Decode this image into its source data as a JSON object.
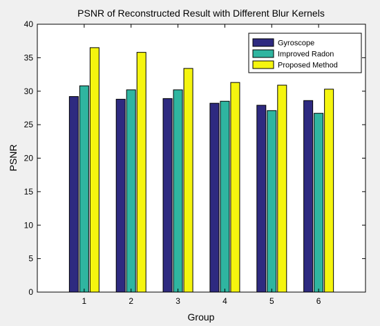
{
  "chart_data": {
    "type": "bar",
    "title": "PSNR of Reconstructed Result with Different Blur Kernels",
    "xlabel": "Group",
    "ylabel": "PSNR",
    "categories": [
      "1",
      "2",
      "3",
      "4",
      "5",
      "6"
    ],
    "ylim": [
      0,
      40
    ],
    "yticks": [
      0,
      5,
      10,
      15,
      20,
      25,
      30,
      35,
      40
    ],
    "grid": false,
    "legend_position": "top-right",
    "series": [
      {
        "name": "Gyroscope",
        "color": "#2e2a80",
        "values": [
          29.2,
          28.8,
          28.9,
          28.2,
          27.9,
          28.6
        ]
      },
      {
        "name": "Improved Radon",
        "color": "#2fb5a0",
        "values": [
          30.8,
          30.2,
          30.2,
          28.5,
          27.1,
          26.7
        ]
      },
      {
        "name": "Proposed Method",
        "color": "#f5f50f",
        "values": [
          36.5,
          35.8,
          33.4,
          31.3,
          30.9,
          30.3
        ]
      }
    ]
  }
}
